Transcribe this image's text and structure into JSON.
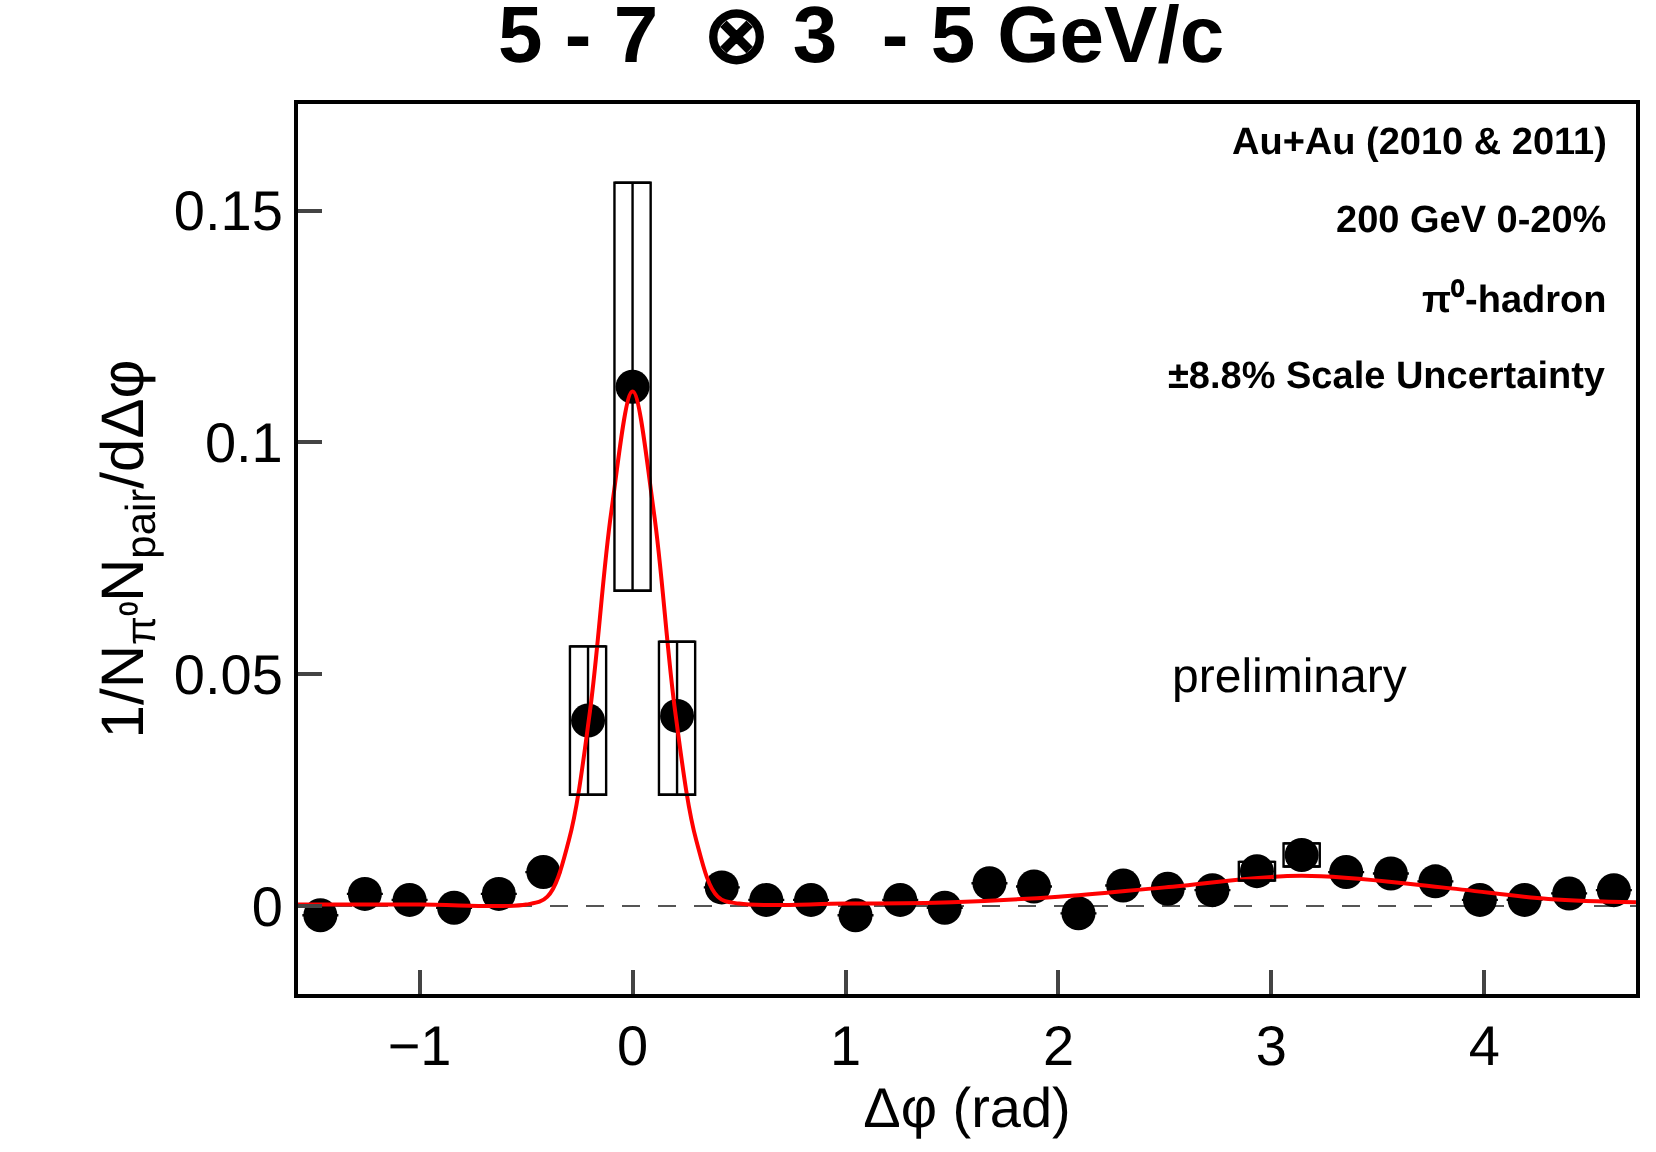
{
  "chart_data": {
    "type": "scatter",
    "title": "5 - 7  ⊗ 3  - 5 GeV/c",
    "xlabel": "Δφ (rad)",
    "ylabel": "1/N$_{π⁰}$N$_{pair}$/dΔφ",
    "xlim": [
      -1.571,
      4.712
    ],
    "ylim": [
      -0.019,
      0.173
    ],
    "xticks": [
      -1,
      0,
      1,
      2,
      3,
      4
    ],
    "yticks": [
      0,
      0.05,
      0.1,
      0.15
    ],
    "grid": false,
    "series": [
      {
        "type": "scatter",
        "marker": "circle",
        "color": "#000000",
        "x": [
          -1.466,
          -1.257,
          -1.047,
          -0.838,
          -0.628,
          -0.419,
          -0.209,
          0.0,
          0.209,
          0.419,
          0.628,
          0.838,
          1.047,
          1.257,
          1.466,
          1.676,
          1.885,
          2.094,
          2.304,
          2.513,
          2.723,
          2.932,
          3.142,
          3.351,
          3.561,
          3.77,
          3.979,
          4.189,
          4.398,
          4.608
        ],
        "values": [
          -0.002,
          0.0026,
          0.0013,
          -0.0004,
          0.0026,
          0.0073,
          0.04,
          0.112,
          0.041,
          0.004,
          0.0013,
          0.0013,
          -0.002,
          0.0013,
          -0.0004,
          0.0049,
          0.0042,
          -0.0016,
          0.0044,
          0.0037,
          0.0034,
          0.0075,
          0.011,
          0.0073,
          0.007,
          0.0053,
          0.0013,
          0.0013,
          0.0027,
          0.0034
        ],
        "errors": [
          null,
          null,
          null,
          null,
          null,
          null,
          [
            0.024,
            0.056
          ],
          [
            0.068,
            0.156
          ],
          [
            0.024,
            0.057
          ],
          null,
          null,
          null,
          null,
          null,
          null,
          null,
          null,
          null,
          null,
          null,
          null,
          [
            0.0055,
            0.0095
          ],
          [
            0.0085,
            0.0135
          ],
          null,
          null,
          null,
          null,
          null,
          null,
          null
        ]
      },
      {
        "type": "line",
        "color": "#ff0000",
        "line_style": "solid",
        "x": [
          -1.571,
          -1.0,
          -0.5,
          -0.4,
          -0.3,
          -0.2,
          -0.1,
          0.0,
          0.1,
          0.2,
          0.3,
          0.4,
          0.5,
          1.0,
          1.5,
          2.0,
          2.5,
          3.142,
          3.8,
          4.3,
          4.712
        ],
        "values": [
          0.0003,
          0.0003,
          0.0003,
          0.002,
          0.014,
          0.042,
          0.085,
          0.111,
          0.085,
          0.042,
          0.014,
          0.002,
          0.0005,
          0.0005,
          0.0008,
          0.002,
          0.004,
          0.0065,
          0.004,
          0.0015,
          0.0008
        ]
      }
    ],
    "ref_lines": [
      {
        "axis": "y",
        "value": 0,
        "color": "#555555",
        "line_style": "dashed"
      }
    ],
    "annotations": [
      "Au+Au (2010 & 2011)",
      "200 GeV 0-20%",
      "π⁰-hadron",
      "±8.8% Scale Uncertainty",
      "preliminary"
    ]
  }
}
